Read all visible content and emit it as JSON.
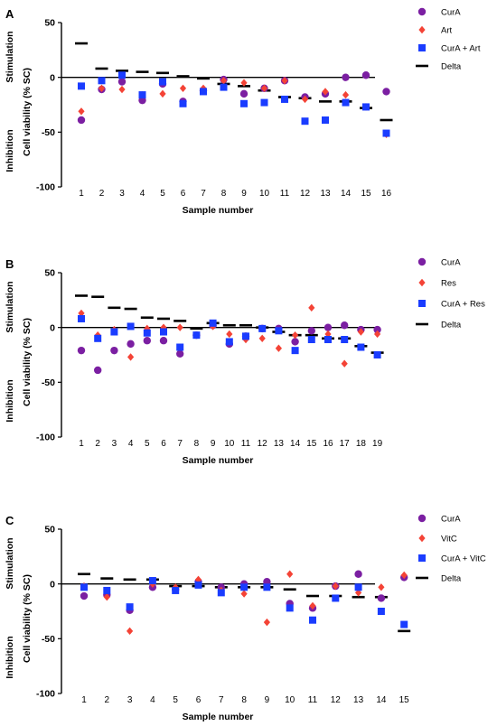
{
  "colors": {
    "cura": "#7b1fa2",
    "second": "#f44336",
    "combo": "#1a3cff",
    "delta": "#000000"
  },
  "chart_data": [
    {
      "type": "scatter",
      "panel": "A",
      "xlabel": "Sample number",
      "ylabel": "Cell viability (% SC)",
      "ylabel_top": "Stimulation",
      "ylabel_bottom": "Inhibition",
      "ylim": [
        -100,
        50
      ],
      "yticks": [
        "50",
        "0",
        "-50",
        "-100"
      ],
      "x": [
        "1",
        "2",
        "3",
        "4",
        "5",
        "6",
        "7",
        "8",
        "9",
        "10",
        "11",
        "12",
        "13",
        "14",
        "15",
        "16"
      ],
      "series": [
        {
          "name": "CurA",
          "marker": "circle",
          "values": [
            -39,
            -11,
            -4,
            -21,
            -6,
            -22,
            -12,
            -2,
            -15,
            -10,
            -3,
            -18,
            -15,
            0,
            2,
            -13
          ]
        },
        {
          "name": "Art",
          "marker": "diamond",
          "values": [
            -31,
            -10,
            -11,
            -16,
            -15,
            -10,
            -10,
            -3,
            -5,
            -10,
            -3,
            -20,
            -13,
            -16,
            -27,
            -52
          ]
        },
        {
          "name": "CurA + Art",
          "marker": "square",
          "values": [
            -8,
            -3,
            2,
            -16,
            -4,
            -24,
            -13,
            -9,
            -24,
            -23,
            -20,
            -40,
            -39,
            -23,
            -27,
            -51
          ]
        },
        {
          "name": "Delta",
          "marker": "dash",
          "values": [
            31,
            8,
            6,
            5,
            4,
            1,
            -1,
            -6,
            -8,
            -12,
            -18,
            -19,
            -22,
            -22,
            -28,
            -39
          ]
        }
      ]
    },
    {
      "type": "scatter",
      "panel": "B",
      "xlabel": "Sample number",
      "ylabel": "Cell viability (% SC)",
      "ylabel_top": "Stimulation",
      "ylabel_bottom": "Inhibition",
      "ylim": [
        -100,
        50
      ],
      "yticks": [
        "50",
        "0",
        "-50",
        "-100"
      ],
      "x": [
        "1",
        "2",
        "3",
        "4",
        "5",
        "6",
        "7",
        "8",
        "9",
        "10",
        "11",
        "12",
        "13",
        "14",
        "15",
        "16",
        "17",
        "18",
        "19"
      ],
      "series": [
        {
          "name": "CurA",
          "marker": "circle",
          "values": [
            -21,
            -39,
            -21,
            -15,
            -12,
            -12,
            -24,
            -7,
            2,
            -15,
            -8,
            -1,
            -1,
            -13,
            -3,
            0,
            2,
            -2,
            -2
          ]
        },
        {
          "name": "Res",
          "marker": "diamond",
          "values": [
            13,
            -7,
            -2,
            -27,
            -1,
            0,
            0,
            -7,
            1,
            -6,
            -11,
            -10,
            -19,
            -7,
            18,
            -6,
            -33,
            -4,
            -6
          ]
        },
        {
          "name": "CurA + Res",
          "marker": "square",
          "values": [
            8,
            -10,
            -4,
            1,
            -5,
            -4,
            -18,
            -7,
            4,
            -13,
            -8,
            -1,
            -3,
            -21,
            -11,
            -11,
            -11,
            -18,
            -25
          ]
        },
        {
          "name": "Delta",
          "marker": "dash",
          "values": [
            29,
            28,
            18,
            17,
            9,
            8,
            6,
            -1,
            4,
            2,
            2,
            0,
            -4,
            -7,
            -7,
            -10,
            -10,
            -17,
            -23
          ]
        }
      ]
    },
    {
      "type": "scatter",
      "panel": "C",
      "xlabel": "Sample number",
      "ylabel": "Cell viability (% SC)",
      "ylabel_top": "Stimulation",
      "ylabel_bottom": "Inhibition",
      "ylim": [
        -100,
        50
      ],
      "yticks": [
        "50",
        "0",
        "-50",
        "-100"
      ],
      "x": [
        "1",
        "2",
        "3",
        "4",
        "5",
        "6",
        "7",
        "8",
        "9",
        "10",
        "11",
        "12",
        "13",
        "14",
        "15"
      ],
      "series": [
        {
          "name": "CurA",
          "marker": "circle",
          "values": [
            -11,
            -10,
            -24,
            -3,
            -5,
            2,
            -3,
            0,
            2,
            -18,
            -22,
            -2,
            9,
            -13,
            6
          ]
        },
        {
          "name": "VitC",
          "marker": "diamond",
          "values": [
            -2,
            -12,
            -43,
            0,
            -3,
            4,
            -6,
            -9,
            -35,
            9,
            -20,
            -2,
            -8,
            -3,
            8
          ]
        },
        {
          "name": "CurA + VitC",
          "marker": "square",
          "values": [
            -3,
            -6,
            -21,
            3,
            -6,
            -1,
            -8,
            -3,
            -3,
            -22,
            -33,
            -13,
            -3,
            -25,
            -37
          ]
        },
        {
          "name": "Delta",
          "marker": "dash",
          "values": [
            9,
            5,
            4,
            4,
            -2,
            -2,
            -3,
            -3,
            -3,
            -5,
            -11,
            -11,
            -12,
            -12,
            -43
          ]
        }
      ]
    }
  ]
}
